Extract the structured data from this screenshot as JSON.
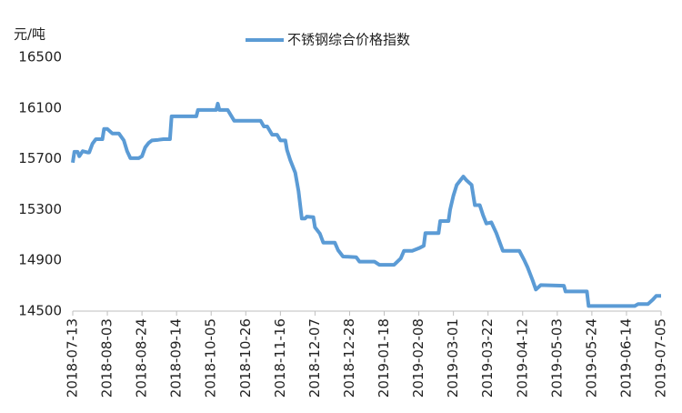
{
  "chart_data": {
    "type": "line",
    "y_unit_label": "元/吨",
    "x": [
      "2018-07-13",
      "2018-07-14",
      "2018-07-16",
      "2018-07-17",
      "2018-07-19",
      "2018-07-22",
      "2018-07-23",
      "2018-07-25",
      "2018-07-27",
      "2018-07-31",
      "2018-08-01",
      "2018-08-03",
      "2018-08-06",
      "2018-08-10",
      "2018-08-13",
      "2018-08-15",
      "2018-08-17",
      "2018-08-22",
      "2018-08-24",
      "2018-08-26",
      "2018-08-28",
      "2018-08-30",
      "2018-09-03",
      "2018-09-06",
      "2018-09-10",
      "2018-09-11",
      "2018-09-26",
      "2018-09-27",
      "2018-10-08",
      "2018-10-09",
      "2018-10-10",
      "2018-10-15",
      "2018-10-19",
      "2018-11-04",
      "2018-11-06",
      "2018-11-08",
      "2018-11-11",
      "2018-11-14",
      "2018-11-16",
      "2018-11-19",
      "2018-11-20",
      "2018-11-22",
      "2018-11-25",
      "2018-11-27",
      "2018-11-29",
      "2018-12-01",
      "2018-12-02",
      "2018-12-06",
      "2018-12-07",
      "2018-12-10",
      "2018-12-12",
      "2018-12-19",
      "2018-12-21",
      "2018-12-24",
      "2019-01-01",
      "2019-01-03",
      "2019-01-12",
      "2019-01-15",
      "2019-01-24",
      "2019-01-28",
      "2019-01-30",
      "2019-02-04",
      "2019-02-08",
      "2019-02-11",
      "2019-02-12",
      "2019-02-20",
      "2019-02-21",
      "2019-02-26",
      "2019-02-27",
      "2019-03-01",
      "2019-03-03",
      "2019-03-07",
      "2019-03-09",
      "2019-03-12",
      "2019-03-14",
      "2019-03-17",
      "2019-03-19",
      "2019-03-21",
      "2019-03-24",
      "2019-03-27",
      "2019-03-29",
      "2019-03-31",
      "2019-04-10",
      "2019-04-13",
      "2019-04-15",
      "2019-04-18",
      "2019-04-20",
      "2019-04-23",
      "2019-05-07",
      "2019-05-08",
      "2019-05-21",
      "2019-05-22",
      "2019-06-19",
      "2019-06-21",
      "2019-06-27",
      "2019-06-30",
      "2019-07-02",
      "2019-07-05"
    ],
    "series": [
      {
        "name": "不锈钢综合价格指数",
        "color": "#5b9bd5",
        "values": [
          15670,
          15755,
          15755,
          15720,
          15760,
          15750,
          15750,
          15820,
          15855,
          15855,
          15935,
          15935,
          15900,
          15900,
          15845,
          15760,
          15705,
          15705,
          15720,
          15790,
          15825,
          15845,
          15850,
          15855,
          15855,
          16035,
          16035,
          16085,
          16085,
          16135,
          16085,
          16085,
          16000,
          16000,
          15955,
          15955,
          15890,
          15890,
          15845,
          15845,
          15770,
          15690,
          15590,
          15445,
          15230,
          15230,
          15245,
          15240,
          15160,
          15110,
          15040,
          15040,
          14980,
          14930,
          14925,
          14890,
          14890,
          14865,
          14865,
          14915,
          14975,
          14975,
          14995,
          15015,
          15115,
          15115,
          15210,
          15210,
          15300,
          15410,
          15495,
          15560,
          15530,
          15495,
          15335,
          15335,
          15255,
          15190,
          15200,
          15115,
          15045,
          14975,
          14975,
          14900,
          14845,
          14745,
          14670,
          14705,
          14700,
          14655,
          14655,
          14540,
          14540,
          14555,
          14555,
          14590,
          14620,
          14620
        ]
      }
    ],
    "xlim": [
      "2018-07-13",
      "2019-07-05"
    ],
    "xticks": [
      "2018-07-13",
      "2018-08-03",
      "2018-08-24",
      "2018-09-14",
      "2018-10-05",
      "2018-10-26",
      "2018-11-16",
      "2018-12-07",
      "2018-12-28",
      "2019-01-18",
      "2019-02-08",
      "2019-03-01",
      "2019-03-22",
      "2019-04-12",
      "2019-05-03",
      "2019-05-24",
      "2019-06-14",
      "2019-07-05"
    ],
    "ylim": [
      14500,
      16500
    ],
    "yticks": [
      14500,
      14900,
      15300,
      15700,
      16100,
      16500
    ],
    "legend": "top",
    "grid": false
  }
}
